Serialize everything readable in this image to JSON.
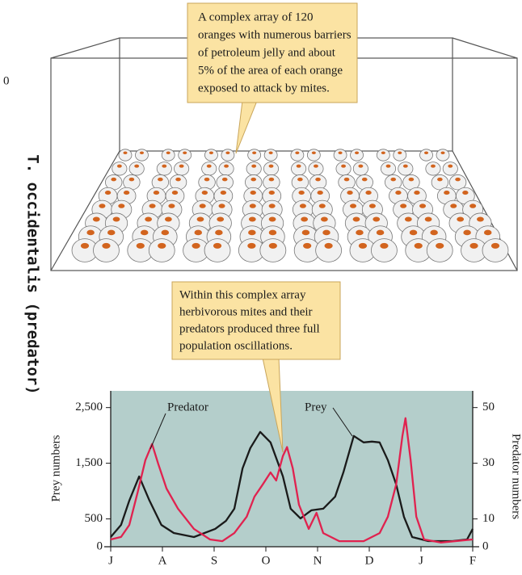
{
  "corner_text": "0",
  "side_label": "T. occidentalis (predator)",
  "illustration": {
    "callout": [
      "A complex array of 120",
      "oranges with numerous barriers",
      "of petroleum jelly and about",
      "5% of the area of each orange",
      "exposed to attack by mites."
    ]
  },
  "chart_data": {
    "type": "line",
    "y_label": "Prey numbers",
    "y2_label": "Predator numbers",
    "xlim": [
      0,
      7
    ],
    "xticks": [
      {
        "value": 0,
        "label": "J"
      },
      {
        "value": 1,
        "label": "A"
      },
      {
        "value": 2,
        "label": "S"
      },
      {
        "value": 3,
        "label": "O"
      },
      {
        "value": 4,
        "label": "N"
      },
      {
        "value": 5,
        "label": "D"
      },
      {
        "value": 6,
        "label": "J"
      },
      {
        "value": 7,
        "label": "F"
      }
    ],
    "ylim": [
      0,
      2800
    ],
    "yticks": [
      0,
      500,
      {
        "value": 1500,
        "label": "1,500"
      },
      {
        "value": 2500,
        "label": "2,500"
      }
    ],
    "y2lim": [
      0,
      56
    ],
    "y2ticks": [
      0,
      10,
      30,
      50
    ],
    "background": "#b4cecb",
    "series": [
      {
        "name": "Prey",
        "color": "#1a1a1a",
        "x": [
          0,
          0.2,
          0.36,
          0.55,
          0.75,
          0.98,
          1.22,
          1.61,
          2.02,
          2.23,
          2.39,
          2.55,
          2.7,
          2.89,
          3.09,
          3.33,
          3.48,
          3.67,
          3.88,
          4.11,
          4.34,
          4.5,
          4.7,
          4.89,
          5.05,
          5.2,
          5.36,
          5.52,
          5.67,
          5.83,
          6.14,
          6.61,
          6.89,
          7
        ],
        "values": [
          174,
          392,
          828,
          1264,
          828,
          392,
          247,
          174,
          320,
          465,
          683,
          1409,
          1773,
          2063,
          1874,
          1264,
          683,
          509,
          654,
          683,
          901,
          1337,
          1991,
          1874,
          1889,
          1874,
          1555,
          1119,
          538,
          174,
          102,
          102,
          131,
          320
        ]
      },
      {
        "name": "Predator",
        "color": "#e0224f",
        "axis": "y2",
        "x": [
          0,
          0.2,
          0.36,
          0.52,
          0.67,
          0.8,
          0.92,
          1.08,
          1.3,
          1.61,
          1.92,
          2.16,
          2.39,
          2.63,
          2.78,
          2.94,
          3.09,
          3.2,
          3.33,
          3.41,
          3.52,
          3.64,
          3.83,
          3.98,
          4.11,
          4.42,
          4.89,
          5.2,
          5.36,
          5.52,
          5.64,
          5.7,
          5.8,
          5.91,
          6.06,
          6.38,
          7
        ],
        "values": [
          2.6,
          3.5,
          7.8,
          19.5,
          31.1,
          36.9,
          29.7,
          20.9,
          13.7,
          6.4,
          2.6,
          2,
          4.9,
          10.8,
          18,
          22.4,
          26.7,
          23.8,
          32.6,
          35.8,
          28.2,
          15.1,
          6.4,
          12.2,
          4.9,
          2,
          2,
          4.9,
          10.8,
          22.4,
          39.8,
          46.2,
          31.1,
          10.8,
          2.6,
          1.5,
          2.6
        ]
      }
    ],
    "annotations": [
      "Within this complex array",
      "herbivorous mites and their",
      "predators produced three full",
      "population oscillations."
    ]
  }
}
